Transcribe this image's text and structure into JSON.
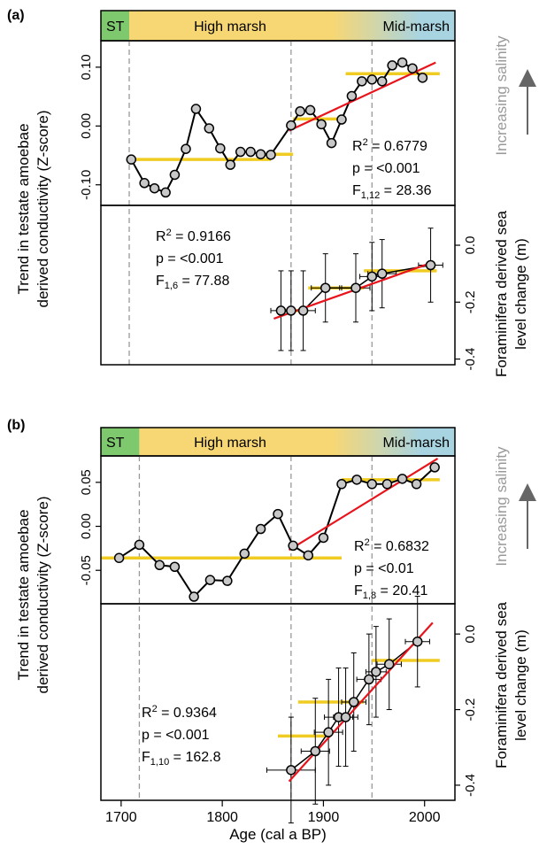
{
  "figure": {
    "xlabel": "Age (cal a BP)",
    "x_ticks": [
      1700,
      1800,
      1900,
      2000
    ],
    "y_left_label": [
      "Trend in testate amoebae",
      "derived conductivity (Z-score)"
    ],
    "y_right_label": [
      "Foraminifera derived sea",
      "level change (m)"
    ],
    "salinity_label": "Increasing salinity",
    "colors": {
      "st": "#7ec86e",
      "high_marsh": "#f7d774",
      "mid_marsh": "#a8d4e2",
      "regression": "#e8141c",
      "segment_mean": "#f0cc22",
      "point_fill": "#c8c8c8",
      "dashed": "#999999",
      "arrow": "#666666"
    }
  },
  "chart_data": [
    {
      "panel": "(a)",
      "zones": [
        {
          "label": "ST",
          "from": 1680,
          "to": 1708
        },
        {
          "label": "High marsh",
          "from": 1708,
          "to": 1920
        },
        {
          "label": "Mid-marsh",
          "from": 1920,
          "to": 2030
        }
      ],
      "dashed_x": [
        1708,
        1868,
        1948
      ],
      "top": {
        "type": "line",
        "ylim": [
          -0.135,
          0.145
        ],
        "yticks": [
          -0.1,
          0.0,
          0.1
        ],
        "ytick_labels": [
          "-0.10",
          "0.00",
          "0.10"
        ],
        "points": [
          [
            1710,
            -0.057
          ],
          [
            1723,
            -0.097
          ],
          [
            1733,
            -0.106
          ],
          [
            1744,
            -0.113
          ],
          [
            1753,
            -0.083
          ],
          [
            1764,
            -0.039
          ],
          [
            1774,
            0.029
          ],
          [
            1787,
            -0.004
          ],
          [
            1798,
            -0.038
          ],
          [
            1808,
            -0.066
          ],
          [
            1818,
            -0.044
          ],
          [
            1828,
            -0.044
          ],
          [
            1838,
            -0.048
          ],
          [
            1848,
            -0.049
          ],
          [
            1868,
            0.001
          ],
          [
            1877,
            0.025
          ],
          [
            1887,
            0.027
          ],
          [
            1898,
            0.003
          ],
          [
            1908,
            -0.029
          ],
          [
            1918,
            0.011
          ],
          [
            1928,
            0.051
          ],
          [
            1938,
            0.076
          ],
          [
            1948,
            0.079
          ],
          [
            1958,
            0.076
          ],
          [
            1968,
            0.103
          ],
          [
            1978,
            0.108
          ],
          [
            1988,
            0.098
          ],
          [
            1998,
            0.082
          ]
        ],
        "segment_means": [
          {
            "x": [
              1706,
              1848
            ],
            "y": -0.057
          },
          {
            "x": [
              1838,
              1870
            ],
            "y": -0.048
          },
          {
            "x": [
              1870,
              1922
            ],
            "y": 0.012
          },
          {
            "x": [
              1922,
              2015
            ],
            "y": 0.089
          }
        ],
        "regression": {
          "x": [
            1866,
            2011
          ],
          "y": [
            -0.008,
            0.108
          ]
        },
        "stats": {
          "r2": "0.6779",
          "p": "<0.001",
          "f_sub": "1,12",
          "f_val": "28.36"
        }
      },
      "bottom": {
        "type": "scatter",
        "ylim": [
          -0.42,
          0.14
        ],
        "yticks": [
          -0.4,
          -0.2,
          0.0
        ],
        "ytick_labels": [
          "-0.4",
          "-0.2",
          "0.0"
        ],
        "points": [
          {
            "x": 1858,
            "y": -0.23,
            "xerr": 10,
            "yerr": 0.14
          },
          {
            "x": 1868,
            "y": -0.23,
            "xerr": 10,
            "yerr": 0.14
          },
          {
            "x": 1880,
            "y": -0.23,
            "xerr": 12,
            "yerr": 0.14
          },
          {
            "x": 1902,
            "y": -0.15,
            "xerr": 14,
            "yerr": 0.12
          },
          {
            "x": 1932,
            "y": -0.15,
            "xerr": 14,
            "yerr": 0.12
          },
          {
            "x": 1948,
            "y": -0.11,
            "xerr": 12,
            "yerr": 0.12
          },
          {
            "x": 1958,
            "y": -0.1,
            "xerr": 14,
            "yerr": 0.12
          },
          {
            "x": 2006,
            "y": -0.07,
            "xerr": 12,
            "yerr": 0.13
          }
        ],
        "segment_means": [
          {
            "x": [
              1855,
              1885
            ],
            "y": -0.23
          },
          {
            "x": [
              1885,
              1940
            ],
            "y": -0.15
          },
          {
            "x": [
              1940,
              2012
            ],
            "y": -0.09
          }
        ],
        "regression": {
          "x": [
            1851,
            2008
          ],
          "y": [
            -0.258,
            -0.06
          ]
        },
        "stats": {
          "r2": "0.9166",
          "p": "<0.001",
          "f_sub": "1,6",
          "f_val": "77.88"
        }
      }
    },
    {
      "panel": "(b)",
      "zones": [
        {
          "label": "ST",
          "from": 1680,
          "to": 1718
        },
        {
          "label": "High marsh",
          "from": 1718,
          "to": 1920
        },
        {
          "label": "Mid-marsh",
          "from": 1920,
          "to": 2030
        }
      ],
      "dashed_x": [
        1718,
        1868,
        1948
      ],
      "top": {
        "type": "line",
        "ylim": [
          -0.088,
          0.08
        ],
        "yticks": [
          -0.05,
          0.0,
          0.05
        ],
        "ytick_labels": [
          "-0.05",
          "0.00",
          "0.05"
        ],
        "points": [
          [
            1698,
            -0.036
          ],
          [
            1718,
            -0.021
          ],
          [
            1738,
            -0.044
          ],
          [
            1753,
            -0.046
          ],
          [
            1772,
            -0.08
          ],
          [
            1788,
            -0.061
          ],
          [
            1805,
            -0.062
          ],
          [
            1822,
            -0.031
          ],
          [
            1838,
            -0.003
          ],
          [
            1855,
            0.014
          ],
          [
            1870,
            -0.022
          ],
          [
            1885,
            -0.033
          ],
          [
            1900,
            -0.013
          ],
          [
            1918,
            0.048
          ],
          [
            1933,
            0.053
          ],
          [
            1948,
            0.048
          ],
          [
            1963,
            0.048
          ],
          [
            1978,
            0.054
          ],
          [
            1992,
            0.048
          ],
          [
            2010,
            0.067
          ]
        ],
        "segment_means": [
          {
            "x": [
              1680,
              1918
            ],
            "y": -0.036
          },
          {
            "x": [
              1918,
              2015
            ],
            "y": 0.053
          }
        ],
        "regression": {
          "x": [
            1866,
            2013
          ],
          "y": [
            -0.027,
            0.077
          ]
        },
        "stats": {
          "r2": "0.6832",
          "p": "<0.01",
          "f_sub": "1,8",
          "f_val": "20.41"
        }
      },
      "bottom": {
        "type": "scatter",
        "ylim": [
          -0.44,
          0.08
        ],
        "yticks": [
          -0.4,
          -0.2,
          0.0
        ],
        "ytick_labels": [
          "-0.4",
          "-0.2",
          "0.0"
        ],
        "points": [
          {
            "x": 1868,
            "y": -0.36,
            "xerr": 24,
            "yerr": 0.14
          },
          {
            "x": 1892,
            "y": -0.31,
            "xerr": 14,
            "yerr": 0.14
          },
          {
            "x": 1905,
            "y": -0.26,
            "xerr": 14,
            "yerr": 0.14
          },
          {
            "x": 1915,
            "y": -0.22,
            "xerr": 14,
            "yerr": 0.13
          },
          {
            "x": 1922,
            "y": -0.22,
            "xerr": 12,
            "yerr": 0.13
          },
          {
            "x": 1930,
            "y": -0.18,
            "xerr": 12,
            "yerr": 0.13
          },
          {
            "x": 1945,
            "y": -0.12,
            "xerr": 12,
            "yerr": 0.12
          },
          {
            "x": 1952,
            "y": -0.1,
            "xerr": 10,
            "yerr": 0.12
          },
          {
            "x": 1965,
            "y": -0.08,
            "xerr": 12,
            "yerr": 0.12
          },
          {
            "x": 1993,
            "y": -0.02,
            "xerr": 12,
            "yerr": 0.12
          }
        ],
        "segment_means": [
          {
            "x": [
              1855,
              1905
            ],
            "y": -0.27
          },
          {
            "x": [
              1875,
              1940
            ],
            "y": -0.18
          },
          {
            "x": [
              1948,
              2015
            ],
            "y": -0.07
          }
        ],
        "regression": {
          "x": [
            1866,
            2008
          ],
          "y": [
            -0.39,
            0.03
          ]
        },
        "stats": {
          "r2": "0.9364",
          "p": "<0.001",
          "f_sub": "1,10",
          "f_val": "162.8"
        }
      }
    }
  ]
}
